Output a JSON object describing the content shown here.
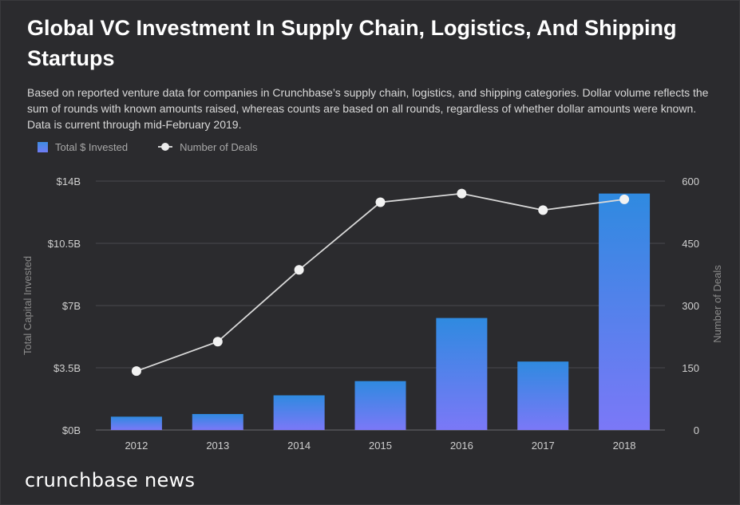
{
  "header": {
    "title": "Global VC Investment In Supply Chain, Logistics, And Shipping Startups",
    "subtitle": "Based on reported venture data for companies in Crunchbase’s supply chain, logistics, and shipping categories. Dollar volume reflects the sum of rounds with known amounts raised, whereas counts are based on all rounds, regardless of whether dollar amounts were known. Data is current through mid-February 2019."
  },
  "legend": {
    "bars_label": "Total $ Invested",
    "line_label": "Number of Deals"
  },
  "footer": {
    "brand": "crunchbase news"
  },
  "colors": {
    "background": "#2b2b2e",
    "bar_top": "#2f8ae0",
    "bar_bottom": "#7b78f7",
    "line": "#d9d9d9",
    "grid": "#4a4a4e",
    "axis_text": "#cfcfcf",
    "axis_title": "#8a8a8a"
  },
  "chart_data": {
    "type": "bar+line",
    "categories": [
      "2012",
      "2013",
      "2014",
      "2015",
      "2016",
      "2017",
      "2018"
    ],
    "series": [
      {
        "name": "Total $ Invested",
        "axis": "left",
        "unit": "billions USD",
        "values": [
          0.75,
          0.9,
          1.95,
          2.75,
          6.3,
          3.85,
          13.3
        ]
      },
      {
        "name": "Number of Deals",
        "axis": "right",
        "values": [
          142,
          213,
          386,
          549,
          570,
          530,
          556
        ]
      }
    ],
    "y_left": {
      "label": "Total Capital Invested",
      "range": [
        0,
        14
      ],
      "ticks": [
        0,
        3.5,
        7,
        10.5,
        14
      ],
      "tick_labels": [
        "$0B",
        "$3.5B",
        "$7B",
        "$10.5B",
        "$14B"
      ]
    },
    "y_right": {
      "label": "Number of Deals",
      "range": [
        0,
        600
      ],
      "ticks": [
        0,
        150,
        300,
        450,
        600
      ],
      "tick_labels": [
        "0",
        "150",
        "300",
        "450",
        "600"
      ]
    },
    "grid": true,
    "legend_position": "top-left"
  }
}
